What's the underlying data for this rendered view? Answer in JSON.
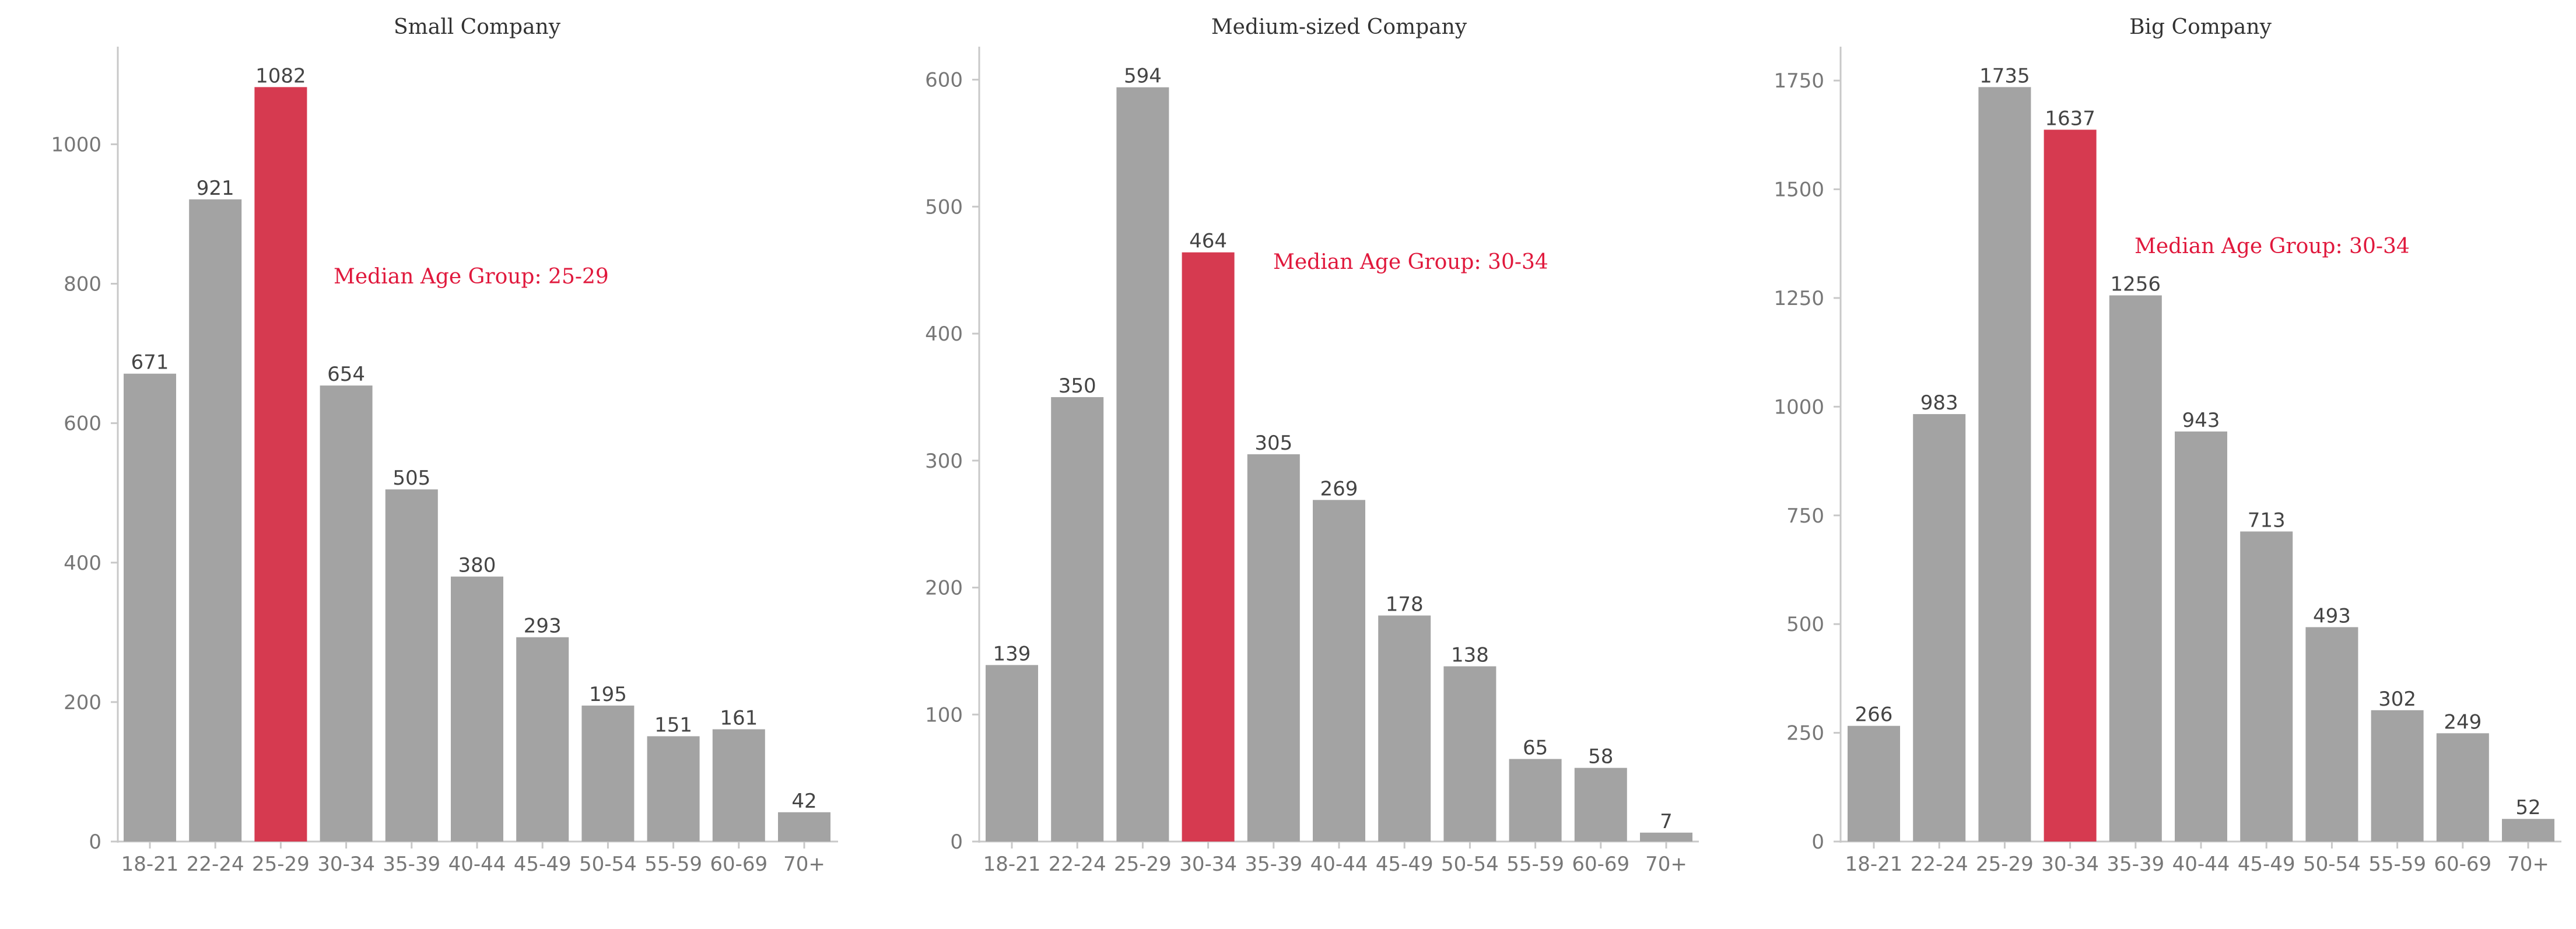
{
  "colors": {
    "bar": "#a3a3a3",
    "highlight": "#d63a50",
    "annotation": "#e0183c"
  },
  "chart_data": [
    {
      "type": "bar",
      "title": "Small Company",
      "xlabel": "",
      "ylabel": "",
      "categories": [
        "18-21",
        "22-24",
        "25-29",
        "30-34",
        "35-39",
        "40-44",
        "45-49",
        "50-54",
        "55-59",
        "60-69",
        "70+"
      ],
      "values": [
        671,
        921,
        1082,
        654,
        505,
        380,
        293,
        195,
        151,
        161,
        42
      ],
      "highlight_category": "25-29",
      "annotation": "Median Age Group: 25-29",
      "ylim": [
        0,
        1140
      ],
      "yticks": [
        0,
        200,
        400,
        600,
        800,
        1000
      ],
      "grid": false
    },
    {
      "type": "bar",
      "title": "Medium-sized Company",
      "xlabel": "",
      "ylabel": "",
      "categories": [
        "18-21",
        "22-24",
        "25-29",
        "30-34",
        "35-39",
        "40-44",
        "45-49",
        "50-54",
        "55-59",
        "60-69",
        "70+"
      ],
      "values": [
        139,
        350,
        594,
        464,
        305,
        269,
        178,
        138,
        65,
        58,
        7
      ],
      "highlight_category": "30-34",
      "annotation": "Median Age Group: 30-34",
      "ylim": [
        0,
        626
      ],
      "yticks": [
        0,
        100,
        200,
        300,
        400,
        500,
        600
      ],
      "grid": false
    },
    {
      "type": "bar",
      "title": "Big Company",
      "xlabel": "",
      "ylabel": "",
      "categories": [
        "18-21",
        "22-24",
        "25-29",
        "30-34",
        "35-39",
        "40-44",
        "45-49",
        "50-54",
        "55-59",
        "60-69",
        "70+"
      ],
      "values": [
        266,
        983,
        1735,
        1637,
        1256,
        943,
        713,
        493,
        302,
        249,
        52
      ],
      "highlight_category": "30-34",
      "annotation": "Median Age Group: 30-34",
      "ylim": [
        0,
        1828
      ],
      "yticks": [
        0,
        250,
        500,
        750,
        1000,
        1250,
        1500,
        1750
      ],
      "grid": false
    }
  ]
}
